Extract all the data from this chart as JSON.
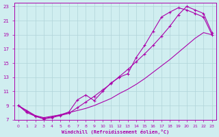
{
  "xlabel": "Windchill (Refroidissement éolien,°C)",
  "xlim": [
    -0.5,
    23.5
  ],
  "ylim": [
    7,
    23.5
  ],
  "xticks": [
    0,
    1,
    2,
    3,
    4,
    5,
    6,
    7,
    8,
    9,
    10,
    11,
    12,
    13,
    14,
    15,
    16,
    17,
    18,
    19,
    20,
    21,
    22,
    23
  ],
  "yticks": [
    7,
    9,
    11,
    13,
    15,
    17,
    19,
    21,
    23
  ],
  "bg_color": "#d0eef0",
  "grid_color": "#b0d4d8",
  "line_color": "#aa00aa",
  "line1_x": [
    0,
    1,
    2,
    3,
    4,
    5,
    6,
    7,
    8,
    9,
    10,
    11,
    12,
    13,
    14,
    15,
    16,
    17,
    18,
    19,
    20,
    21,
    22,
    23
  ],
  "line1_y": [
    9.0,
    8.3,
    7.6,
    7.3,
    7.5,
    7.7,
    8.0,
    8.3,
    8.6,
    9.0,
    9.5,
    10.0,
    10.7,
    11.3,
    12.0,
    12.8,
    13.7,
    14.6,
    15.5,
    16.5,
    17.5,
    18.5,
    19.3,
    19.0
  ],
  "line2_x": [
    0,
    1,
    2,
    3,
    4,
    5,
    6,
    7,
    8,
    9,
    10,
    11,
    12,
    13,
    14,
    15,
    16,
    17,
    18,
    19,
    20,
    21,
    22,
    23
  ],
  "line2_y": [
    9.0,
    8.0,
    7.5,
    7.2,
    7.4,
    7.7,
    8.1,
    9.8,
    10.5,
    9.7,
    11.0,
    12.2,
    13.0,
    13.5,
    15.8,
    17.5,
    19.5,
    21.5,
    22.2,
    22.8,
    22.5,
    22.0,
    21.5,
    19.0
  ],
  "line3_x": [
    0,
    1,
    2,
    3,
    4,
    5,
    6,
    7,
    8,
    9,
    10,
    11,
    12,
    13,
    14,
    15,
    16,
    17,
    18,
    19,
    20,
    21,
    22,
    23
  ],
  "line3_y": [
    9.0,
    8.2,
    7.5,
    7.1,
    7.3,
    7.6,
    7.9,
    8.7,
    9.5,
    10.3,
    11.2,
    12.1,
    13.1,
    14.1,
    15.2,
    16.3,
    17.5,
    18.8,
    20.2,
    21.8,
    23.0,
    22.5,
    22.0,
    19.3
  ],
  "marker": "+"
}
